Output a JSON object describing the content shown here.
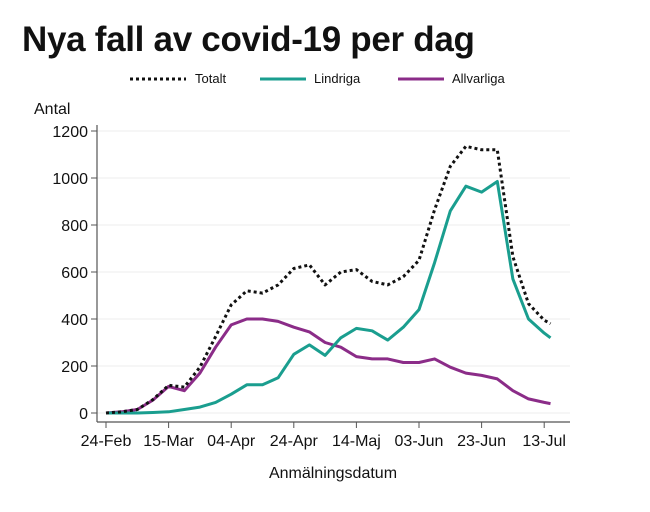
{
  "chart_data": {
    "type": "line",
    "title": "Nya fall av covid-19 per dag",
    "xlabel": "Anmälningsdatum",
    "ylabel": "Antal",
    "ylim": [
      0,
      1200
    ],
    "yticks": [
      "0",
      "200",
      "400",
      "600",
      "800",
      "1000",
      "1200"
    ],
    "xticks": [
      "24-Feb",
      "15-Mar",
      "04-Apr",
      "24-Apr",
      "14-Maj",
      "03-Jun",
      "23-Jun",
      "13-Jul"
    ],
    "grid": true,
    "legend_position": "top",
    "x": [
      "24-Feb",
      "29-Feb",
      "05-Mar",
      "10-Mar",
      "15-Mar",
      "20-Mar",
      "25-Mar",
      "30-Mar",
      "04-Apr",
      "09-Apr",
      "14-Apr",
      "19-Apr",
      "24-Apr",
      "29-Apr",
      "04-Maj",
      "09-Maj",
      "14-Maj",
      "19-Maj",
      "24-Maj",
      "29-Maj",
      "03-Jun",
      "08-Jun",
      "13-Jun",
      "18-Jun",
      "23-Jun",
      "28-Jun",
      "03-Jul",
      "08-Jul",
      "13-Jul",
      "15-Jul"
    ],
    "series": [
      {
        "name": "Totalt",
        "color": "#111111",
        "style": "dotted",
        "values": [
          0,
          5,
          15,
          57,
          118,
          110,
          195,
          325,
          460,
          520,
          510,
          545,
          615,
          630,
          545,
          600,
          610,
          560,
          545,
          580,
          650,
          865,
          1050,
          1135,
          1120,
          1120,
          665,
          465,
          395,
          380
        ]
      },
      {
        "name": "Lindriga",
        "color": "#1a9e8f",
        "style": "solid",
        "values": [
          0,
          0,
          0,
          2,
          5,
          15,
          25,
          45,
          80,
          120,
          120,
          150,
          250,
          290,
          245,
          320,
          360,
          350,
          310,
          365,
          440,
          640,
          860,
          965,
          940,
          985,
          570,
          400,
          340,
          320
        ]
      },
      {
        "name": "Allvarliga",
        "color": "#8b2c88",
        "style": "solid",
        "values": [
          0,
          5,
          15,
          55,
          113,
          95,
          170,
          280,
          375,
          400,
          400,
          390,
          365,
          345,
          300,
          280,
          240,
          230,
          230,
          215,
          215,
          230,
          195,
          170,
          160,
          145,
          95,
          60,
          45,
          40
        ]
      }
    ]
  }
}
